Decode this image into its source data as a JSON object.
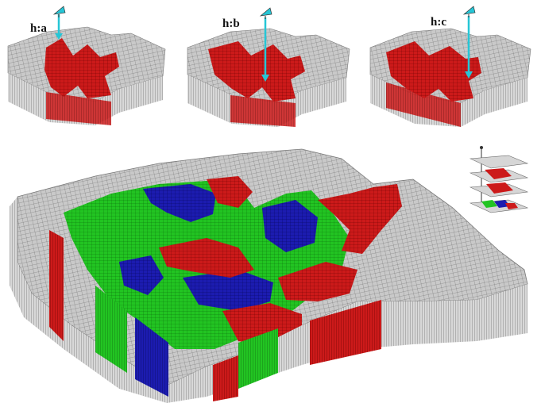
{
  "colors": {
    "terrain": "#c9c9c9",
    "terrain_dark": "#8f8f8f",
    "mesh_line": "#555555",
    "red_zone": "#cc1a1a",
    "green_zone": "#22c422",
    "blue_zone": "#1c1cb0",
    "viewer": "#26c6d6",
    "background": "#ffffff"
  },
  "panels": [
    {
      "label": "h:a",
      "icon": "eye-icon"
    },
    {
      "label": "h:b",
      "icon": "eye-icon"
    },
    {
      "label": "h:c",
      "icon": "eye-icon"
    }
  ],
  "main_model": {
    "legend": "layer-stack-icon"
  }
}
